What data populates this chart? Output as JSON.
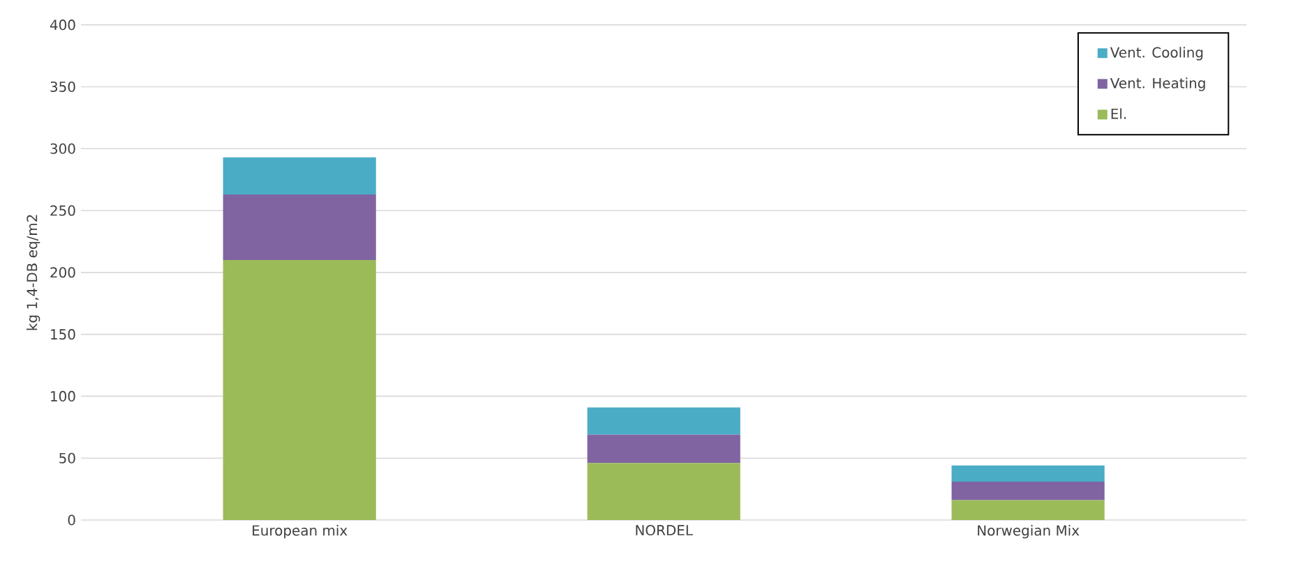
{
  "chart_data": {
    "type": "bar",
    "stacked": true,
    "ylabel": "kg 1,4-DB eq/m2",
    "categories": [
      "European mix",
      "NORDEL",
      "Norwegian Mix"
    ],
    "series": [
      {
        "name": "El.",
        "color": "#9bbb59",
        "values": [
          210,
          46,
          16
        ]
      },
      {
        "name": "Vent. Heating",
        "color": "#8064a2",
        "values": [
          53,
          23,
          15
        ]
      },
      {
        "name": "Vent. Cooling",
        "color": "#4bacc6",
        "values": [
          30,
          22,
          13
        ]
      }
    ],
    "ylim": [
      0,
      400
    ],
    "yticks": [
      0,
      50,
      100,
      150,
      200,
      250,
      300,
      350,
      400
    ],
    "grid": "y",
    "legend": "top right"
  }
}
